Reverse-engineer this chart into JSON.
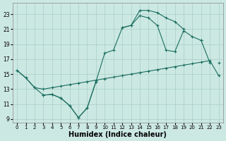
{
  "title": "Humidex (Indice chaleur)",
  "bg_color": "#cce8e2",
  "grid_color": "#a8cfc8",
  "line_color": "#1a6e60",
  "line1_x": [
    0,
    1,
    2,
    3,
    4,
    5,
    6,
    7,
    8,
    9,
    10,
    11,
    12,
    13,
    14,
    15,
    16,
    17,
    18,
    19,
    20,
    21,
    22,
    23
  ],
  "line1_y": [
    15.5,
    14.5,
    13.2,
    13.0,
    13.2,
    13.4,
    13.6,
    13.8,
    14.0,
    14.2,
    14.4,
    14.6,
    14.8,
    15.0,
    15.2,
    15.4,
    15.6,
    15.8,
    16.0,
    16.2,
    16.4,
    16.6,
    16.8,
    14.8
  ],
  "line2_x": [
    0,
    1,
    2,
    3,
    4,
    5,
    6,
    7,
    8,
    9,
    10,
    11,
    12,
    13,
    14,
    15,
    16,
    17,
    18,
    19,
    20,
    21,
    22,
    23
  ],
  "line2_y": [
    15.5,
    14.5,
    13.2,
    12.2,
    12.3,
    11.8,
    10.8,
    9.2,
    10.5,
    14.0,
    17.8,
    18.2,
    21.2,
    21.5,
    22.8,
    22.5,
    21.5,
    18.2,
    18.0,
    20.8,
    20.0,
    19.5,
    16.5,
    null
  ],
  "line3_x": [
    0,
    1,
    2,
    3,
    4,
    5,
    6,
    7,
    8,
    9,
    10,
    11,
    12,
    13,
    14,
    15,
    16,
    17,
    18,
    19,
    20,
    21,
    22,
    23
  ],
  "line3_y": [
    null,
    null,
    null,
    12.2,
    12.3,
    11.8,
    10.8,
    9.2,
    10.5,
    14.0,
    null,
    null,
    null,
    null,
    null,
    null,
    null,
    null,
    null,
    null,
    null,
    null,
    null,
    null
  ],
  "line4_x": [
    12,
    13,
    14,
    15,
    16,
    17,
    18,
    19,
    20,
    21,
    22,
    23
  ],
  "line4_y": [
    21.2,
    21.5,
    23.5,
    23.5,
    23.2,
    22.5,
    22.0,
    21.0,
    null,
    19.5,
    null,
    16.5
  ],
  "xlim": [
    -0.5,
    23.5
  ],
  "ylim": [
    8.5,
    24.5
  ],
  "yticks": [
    9,
    11,
    13,
    15,
    17,
    19,
    21,
    23
  ],
  "xticks": [
    0,
    1,
    2,
    3,
    4,
    5,
    6,
    7,
    8,
    9,
    10,
    11,
    12,
    13,
    14,
    15,
    16,
    17,
    18,
    19,
    20,
    21,
    22,
    23
  ]
}
